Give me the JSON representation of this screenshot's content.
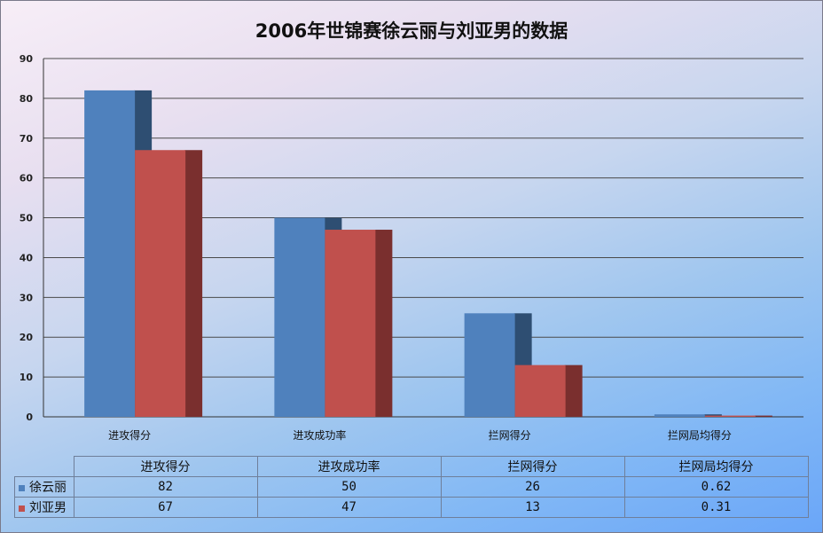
{
  "chart_data": {
    "type": "bar",
    "title": "2006年世锦赛徐云丽与刘亚男的数据",
    "categories": [
      "进攻得分",
      "进攻成功率",
      "拦网得分",
      "拦网局均得分"
    ],
    "series": [
      {
        "name": "徐云丽",
        "values": [
          82,
          50,
          26,
          0.62
        ],
        "color": "#4f81bd",
        "side": "#2e4e72"
      },
      {
        "name": "刘亚男",
        "values": [
          67,
          47,
          13,
          0.31
        ],
        "color": "#c0504d",
        "side": "#7a2f2e"
      }
    ],
    "ylim": [
      0,
      90
    ],
    "yticks": [
      "0",
      "10",
      "20",
      "30",
      "40",
      "50",
      "60",
      "70",
      "80",
      "90"
    ],
    "grid": true,
    "legend": "data table below chart",
    "data_table": {
      "rows": [
        {
          "name": "徐云丽",
          "cells": [
            "82",
            "50",
            "26",
            "0.62"
          ]
        },
        {
          "name": "刘亚男",
          "cells": [
            "67",
            "47",
            "13",
            "0.31"
          ]
        }
      ]
    }
  }
}
